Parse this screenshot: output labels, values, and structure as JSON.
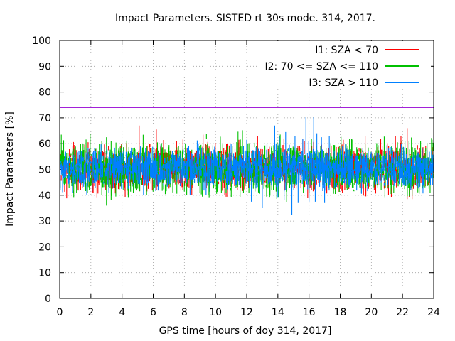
{
  "chart_data": {
    "type": "line",
    "title": "Impact Parameters. SISTED rt 30s mode. 314, 2017.",
    "xlabel": "GPS time [hours of doy 314, 2017]",
    "ylabel": "Impact Parameters [%]",
    "xlim": [
      0,
      24
    ],
    "ylim": [
      0,
      100
    ],
    "xticks": [
      0,
      2,
      4,
      6,
      8,
      10,
      12,
      14,
      16,
      18,
      20,
      22,
      24
    ],
    "yticks": [
      0,
      10,
      20,
      30,
      40,
      50,
      60,
      70,
      80,
      90,
      100
    ],
    "grid": true,
    "legend_position": "top-right",
    "threshold": {
      "value": 74,
      "color": "#9400d3"
    },
    "series": [
      {
        "name": "I1: SZA < 70",
        "color": "#ff0000",
        "mean": 50.5,
        "spread": 4.5,
        "peaks": [
          [
            5.1,
            67
          ],
          [
            6.2,
            65.5
          ],
          [
            7.5,
            61
          ],
          [
            9.2,
            63.5
          ],
          [
            10.3,
            62
          ],
          [
            11.5,
            61.5
          ],
          [
            12.7,
            63
          ],
          [
            15.6,
            62
          ],
          [
            18.2,
            61.5
          ],
          [
            19.6,
            63
          ],
          [
            20.6,
            62
          ],
          [
            21.9,
            63
          ],
          [
            22.3,
            66
          ],
          [
            5.6,
            41.5
          ],
          [
            7.9,
            42
          ],
          [
            8.3,
            43
          ],
          [
            9.6,
            42.5
          ],
          [
            11.4,
            42
          ],
          [
            20.2,
            42
          ],
          [
            21.1,
            40
          ],
          [
            22.3,
            38.5
          ],
          [
            22.6,
            42
          ]
        ]
      },
      {
        "name": "I2: 70 <= SZA <= 110",
        "color": "#00c000",
        "mean": 50.5,
        "spread": 5,
        "peaks": [
          [
            0.1,
            63.5
          ],
          [
            0.9,
            58
          ],
          [
            1.5,
            60
          ],
          [
            2.7,
            61
          ],
          [
            3.0,
            62.5
          ],
          [
            3.3,
            61
          ],
          [
            4.3,
            61
          ],
          [
            6.5,
            60
          ],
          [
            19.3,
            58
          ],
          [
            19.6,
            60
          ],
          [
            21.3,
            59
          ],
          [
            21.8,
            58
          ],
          [
            23.9,
            61.5
          ],
          [
            0.9,
            39
          ],
          [
            1.9,
            42
          ],
          [
            2.7,
            40
          ],
          [
            3.0,
            36
          ],
          [
            3.3,
            38
          ],
          [
            3.6,
            39.5
          ],
          [
            4.1,
            42
          ],
          [
            4.4,
            39
          ],
          [
            6.1,
            43
          ],
          [
            20.9,
            43
          ],
          [
            23.7,
            42.5
          ]
        ]
      },
      {
        "name": "I3: SZA > 110",
        "color": "#0080ff",
        "mean": 50.5,
        "spread": 4,
        "peaks": [
          [
            11.0,
            60
          ],
          [
            12.0,
            61.5
          ],
          [
            13.3,
            60
          ],
          [
            13.8,
            67
          ],
          [
            14.1,
            63
          ],
          [
            14.5,
            64.5
          ],
          [
            15.1,
            63
          ],
          [
            15.6,
            62
          ],
          [
            15.8,
            70.5
          ],
          [
            16.3,
            70.5
          ],
          [
            16.5,
            64
          ],
          [
            16.8,
            62.5
          ],
          [
            17.3,
            63
          ],
          [
            12.3,
            37.5
          ],
          [
            13.0,
            35
          ],
          [
            14.0,
            39
          ],
          [
            14.4,
            38
          ],
          [
            14.9,
            32.5
          ],
          [
            15.3,
            37
          ],
          [
            16.0,
            37.5
          ],
          [
            16.4,
            37.5
          ],
          [
            17.0,
            37
          ]
        ]
      }
    ]
  }
}
